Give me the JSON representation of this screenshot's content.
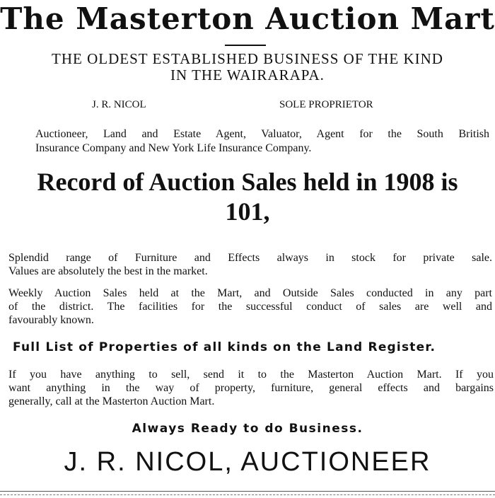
{
  "header": {
    "title": "The Masterton Auction Mart",
    "subtitle": [
      "THE OLDEST ESTABLISHED BUSINESS OF THE KIND",
      "IN THE WAIRARAPA."
    ]
  },
  "proprietor": {
    "name": "J. R. NICOL",
    "role": "SOLE PROPRIETOR"
  },
  "services": [
    "Auctioneer, Land and Estate Agent, Valuator, Agent for the South British",
    "Insurance Company and New York Life Insurance Company."
  ],
  "record": [
    "Record of Auction Sales held in 1908 is",
    "101,"
  ],
  "paragraphs": [
    [
      "Splendid range of Furniture and Effects always in stock for private sale.",
      "Values are absolutely the best in the market."
    ],
    [
      "Weekly Auction Sales held at the Mart, and Outside Sales conducted in any part",
      "of the district. The facilities for the successful conduct of sales are well and",
      "favourably known."
    ]
  ],
  "properties": "Full List of Properties of all kinds on the Land Register.",
  "offer": [
    "If you have anything to sell, send it to the Masterton Auction Mart. If you",
    "want anything in the way of property, furniture, general effects and bargains",
    "generally, call at the Masterton Auction Mart."
  ],
  "slogan": "Always Ready to do Business.",
  "signature": "J. R. NICOL, AUCTIONEER"
}
